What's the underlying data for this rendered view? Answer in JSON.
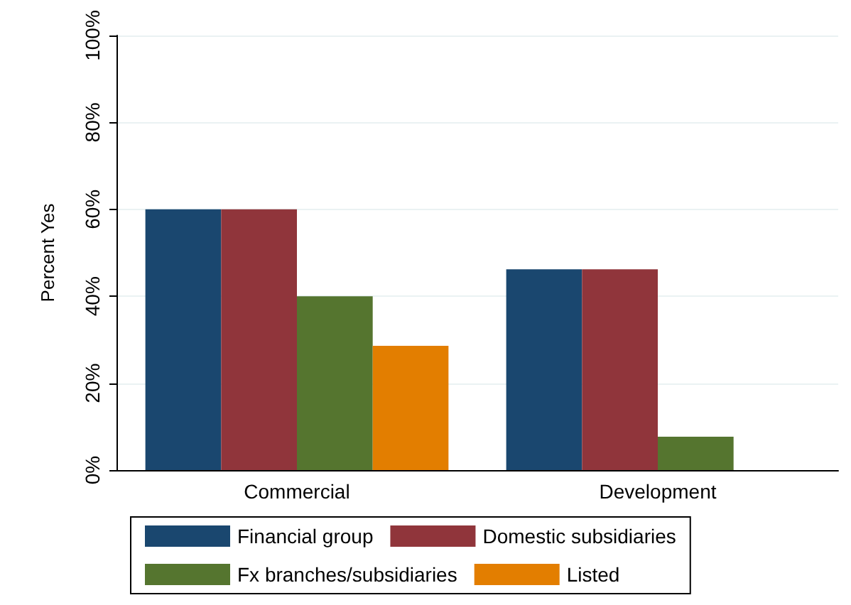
{
  "chart_data": {
    "type": "bar",
    "ylabel": "Percent Yes",
    "categories": [
      "Commercial",
      "Development"
    ],
    "series": [
      {
        "name": "Financial group",
        "color": "#1a476f",
        "values": [
          60,
          46.2
        ]
      },
      {
        "name": "Domestic subsidiaries",
        "color": "#90353b",
        "values": [
          60,
          46.2
        ]
      },
      {
        "name": "Fx branches/subsidiaries",
        "color": "#55752f",
        "values": [
          40,
          7.7
        ]
      },
      {
        "name": "Listed",
        "color": "#e37e00",
        "values": [
          28.6,
          0
        ]
      }
    ],
    "ylim": [
      0,
      100
    ],
    "yticks": [
      {
        "value": 0,
        "label": "0%"
      },
      {
        "value": 20,
        "label": "20%"
      },
      {
        "value": 40,
        "label": "40%"
      },
      {
        "value": 60,
        "label": "60%"
      },
      {
        "value": 80,
        "label": "80%"
      },
      {
        "value": 100,
        "label": "100%"
      }
    ],
    "grid": "y",
    "legend": "bottom"
  }
}
